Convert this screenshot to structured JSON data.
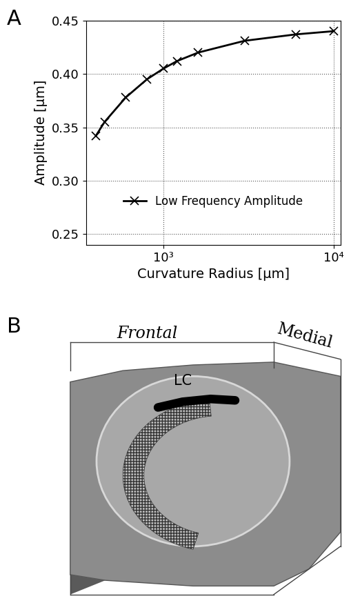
{
  "chart_data": {
    "type": "line",
    "panel_label": "A",
    "x_label": "Curvature Radius [µm]",
    "y_label": "Amplitude [µm]",
    "x": [
      400,
      450,
      600,
      800,
      1000,
      1200,
      1600,
      3000,
      6000,
      10000
    ],
    "series": [
      {
        "name": "Low Frequency Amplitude",
        "color": "#000000",
        "marker": "x",
        "line_style": "solid",
        "values": [
          0.342,
          0.355,
          0.378,
          0.395,
          0.405,
          0.412,
          0.42,
          0.431,
          0.437,
          0.44
        ]
      }
    ],
    "log": "x",
    "xlim": [
      350,
      11000
    ],
    "xticks": [
      {
        "value": 1000,
        "label": "10³"
      },
      {
        "value": 10000,
        "label": "10⁴"
      }
    ],
    "ylim": [
      0.24,
      0.45
    ],
    "yticks": [
      0.25,
      {
        "value": 0.3,
        "label": "0.30"
      },
      0.35,
      {
        "value": 0.4,
        "label": "0.40"
      },
      0.45
    ],
    "grid": true,
    "legend": "lower center"
  },
  "diagram": {
    "panel_label": "B",
    "frontal_label": "Frontal",
    "medial_label": "Medial",
    "structure_label": "LC"
  }
}
